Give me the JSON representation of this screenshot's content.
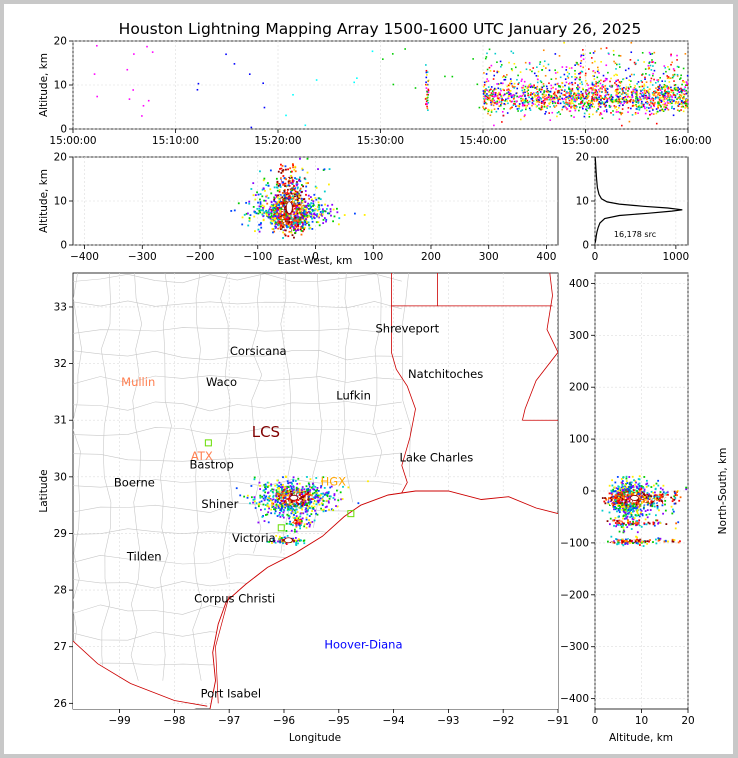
{
  "chart_data": {
    "type": "scatter",
    "title": "Houston Lightning Mapping Array 1500-1600 UTC January 26, 2025",
    "panels": {
      "time_altitude": {
        "ylabel": "Altitude, km",
        "xlim": [
          "15:00:00",
          "16:00:00"
        ],
        "ylim": [
          0,
          20
        ],
        "x_ticks": [
          "15:00:00",
          "15:10:00",
          "15:20:00",
          "15:30:00",
          "15:40:00",
          "15:50:00",
          "16:00:00"
        ],
        "y_ticks": [
          0,
          10,
          20
        ]
      },
      "eastwest_altitude": {
        "xlabel": "East-West, km",
        "ylabel": "Altitude, km",
        "xlim": [
          -420,
          420
        ],
        "ylim": [
          0,
          20
        ],
        "x_ticks": [
          -400,
          -300,
          -200,
          -100,
          0,
          100,
          200,
          300,
          400
        ],
        "y_ticks": [
          0,
          10,
          20
        ]
      },
      "histogram": {
        "xlim": [
          0,
          1150
        ],
        "ylim": [
          0,
          20
        ],
        "x_ticks": [
          0,
          1000
        ],
        "y_ticks": [
          0,
          10,
          20
        ],
        "annotation": "16,178 src",
        "profile": [
          [
            2,
            0.5
          ],
          [
            8,
            1
          ],
          [
            15,
            2
          ],
          [
            25,
            3
          ],
          [
            40,
            4
          ],
          [
            60,
            5
          ],
          [
            120,
            6
          ],
          [
            300,
            6.7
          ],
          [
            650,
            7.2
          ],
          [
            950,
            7.7
          ],
          [
            1080,
            8
          ],
          [
            900,
            8.4
          ],
          [
            600,
            8.8
          ],
          [
            300,
            9.3
          ],
          [
            150,
            9.8
          ],
          [
            80,
            10.5
          ],
          [
            50,
            11.5
          ],
          [
            30,
            13
          ],
          [
            20,
            15
          ],
          [
            12,
            17
          ],
          [
            6,
            19
          ],
          [
            3,
            20
          ]
        ]
      },
      "map": {
        "xlabel": "Longitude",
        "ylabel": "Latitude",
        "xlim": [
          -99.85,
          -91
        ],
        "ylim": [
          25.9,
          33.6
        ],
        "x_ticks": [
          -99,
          -98,
          -97,
          -96,
          -95,
          -94,
          -93,
          -92,
          -91
        ],
        "y_ticks": [
          26,
          27,
          28,
          29,
          30,
          31,
          32,
          33
        ]
      },
      "altitude_northsouth": {
        "xlabel": "Altitude, km",
        "ylabel": "North-South, km",
        "xlim": [
          0,
          20
        ],
        "ylim": [
          -420,
          420
        ],
        "x_ticks": [
          0,
          10,
          20
        ],
        "y_ticks": [
          -400,
          -300,
          -200,
          -100,
          0,
          100,
          200,
          300,
          400
        ]
      }
    },
    "map_labels": [
      {
        "text": "Shreveport",
        "lon": -93.75,
        "lat": 32.55,
        "color": "#000000"
      },
      {
        "text": "Corsicana",
        "lon": -96.47,
        "lat": 32.15,
        "color": "#000000"
      },
      {
        "text": "Natchitoches",
        "lon": -93.05,
        "lat": 31.75,
        "color": "#000000"
      },
      {
        "text": "Mullin",
        "lon": -98.66,
        "lat": 31.6,
        "color": "#ff7f50"
      },
      {
        "text": "Waco",
        "lon": -97.14,
        "lat": 31.6,
        "color": "#000000"
      },
      {
        "text": "Lufkin",
        "lon": -94.73,
        "lat": 31.37,
        "color": "#000000"
      },
      {
        "text": "LCS",
        "lon": -96.33,
        "lat": 30.7,
        "color": "#800000"
      },
      {
        "text": "ATX",
        "lon": -97.5,
        "lat": 30.3,
        "color": "#ff7f50"
      },
      {
        "text": "Lake Charles",
        "lon": -93.22,
        "lat": 30.27,
        "color": "#000000"
      },
      {
        "text": "Bastrop",
        "lon": -97.32,
        "lat": 30.15,
        "color": "#000000"
      },
      {
        "text": "Boerne",
        "lon": -98.73,
        "lat": 29.83,
        "color": "#000000"
      },
      {
        "text": "HGX",
        "lon": -95.1,
        "lat": 29.85,
        "color": "#ffa500"
      },
      {
        "text": "Shiner",
        "lon": -97.17,
        "lat": 29.45,
        "color": "#000000"
      },
      {
        "text": "Victoria",
        "lon": -96.55,
        "lat": 28.85,
        "color": "#000000"
      },
      {
        "text": "Tilden",
        "lon": -98.55,
        "lat": 28.52,
        "color": "#000000"
      },
      {
        "text": "Corpus Christi",
        "lon": -96.9,
        "lat": 27.78,
        "color": "#000000"
      },
      {
        "text": "Hoover-Diana",
        "lon": -94.55,
        "lat": 26.97,
        "color": "#0000ff"
      },
      {
        "text": "Port Isabel",
        "lon": -96.97,
        "lat": 26.1,
        "color": "#000000"
      }
    ],
    "source_clusters": [
      {
        "t_min": 34.4,
        "dt_min": 0.3,
        "lon": -95.85,
        "lat": 29.65,
        "spread_lon": 0.25,
        "spread_lat": 0.12,
        "count": 40
      },
      {
        "t_min": 40.0,
        "dt_min": 20.0,
        "lon": -95.8,
        "lat": 29.62,
        "spread_lon": 0.35,
        "spread_lat": 0.15,
        "count": 1400
      },
      {
        "t_min": 45.0,
        "dt_min": 14.0,
        "lon": -95.75,
        "lat": 29.2,
        "spread_lon": 0.12,
        "spread_lat": 0.06,
        "count": 120
      },
      {
        "t_min": 48.0,
        "dt_min": 12.0,
        "lon": -95.92,
        "lat": 28.88,
        "spread_lon": 0.15,
        "spread_lat": 0.04,
        "count": 160
      }
    ],
    "colors": {
      "early": "#ff00ff",
      "mid": "#00c000",
      "late": "#ff0000",
      "border": "#cc0000",
      "county": "#c8c8c8",
      "density": [
        "#8800ff",
        "#0044ff",
        "#00cccc",
        "#00cc00",
        "#ffee00",
        "#ff6600",
        "#ff0000",
        "#880000",
        "#ffffff"
      ]
    }
  }
}
